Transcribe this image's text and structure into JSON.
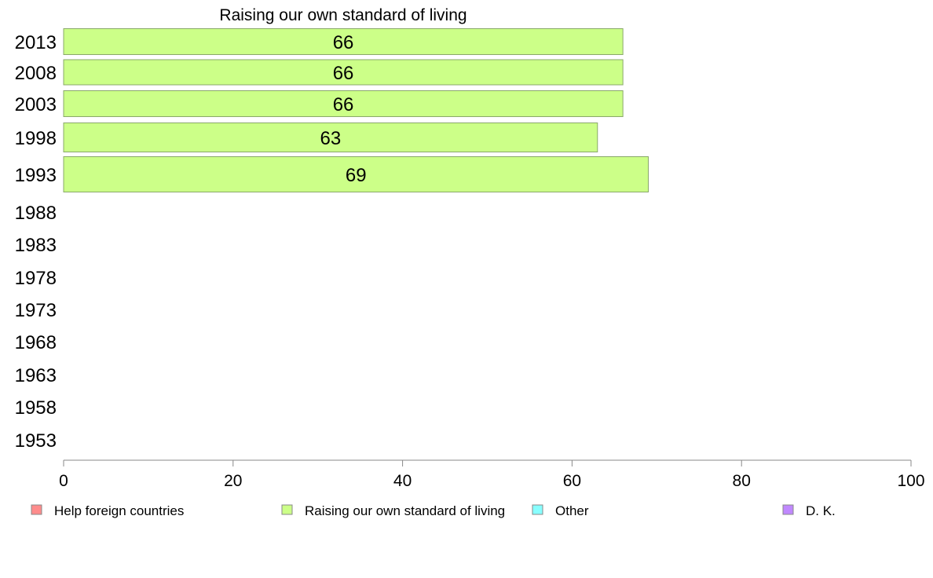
{
  "chart_data": {
    "type": "bar",
    "orientation": "horizontal",
    "title": "Raising our own standard of living",
    "categories": [
      "2013",
      "2008",
      "2003",
      "1998",
      "1993",
      "1988",
      "1983",
      "1978",
      "1973",
      "1968",
      "1963",
      "1958",
      "1953"
    ],
    "series": [
      {
        "name": "Help foreign countries",
        "color": "#ff8c8c",
        "values": [
          null,
          null,
          null,
          null,
          null,
          null,
          null,
          null,
          null,
          null,
          null,
          null,
          null
        ]
      },
      {
        "name": "Raising our own standard of living",
        "color": "#ccff88",
        "values": [
          66,
          66,
          66,
          63,
          69,
          null,
          null,
          null,
          null,
          null,
          null,
          null,
          null
        ]
      },
      {
        "name": "Other",
        "color": "#88ffff",
        "values": [
          null,
          null,
          null,
          null,
          null,
          null,
          null,
          null,
          null,
          null,
          null,
          null,
          null
        ]
      },
      {
        "name": "D. K.",
        "color": "#c088ff",
        "values": [
          null,
          null,
          null,
          null,
          null,
          null,
          null,
          null,
          null,
          null,
          null,
          null,
          null
        ]
      }
    ],
    "xlim": [
      0,
      100
    ],
    "xticks": [
      0,
      20,
      40,
      60,
      80,
      100
    ],
    "grid": false,
    "legend": "bottom",
    "data_labels": true
  }
}
